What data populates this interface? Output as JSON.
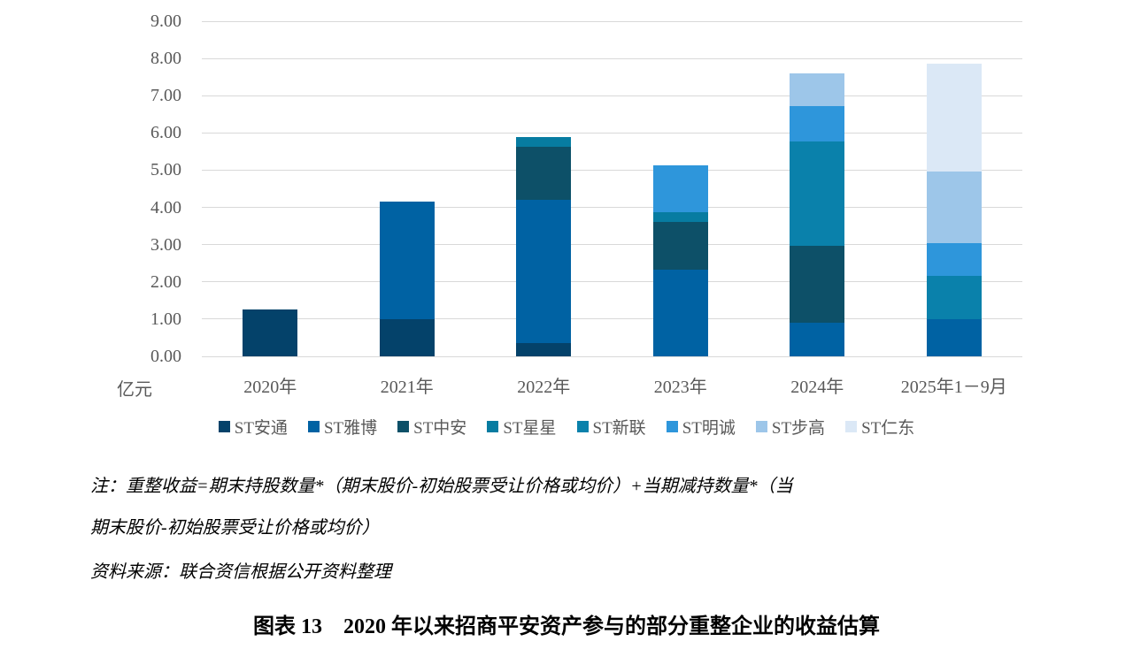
{
  "chart_data": {
    "type": "bar",
    "stacked": true,
    "title": "",
    "xlabel": "",
    "ylabel": "亿元",
    "ylim": [
      0,
      9
    ],
    "ytick_labels": [
      "0.00",
      "1.00",
      "2.00",
      "3.00",
      "4.00",
      "5.00",
      "6.00",
      "7.00",
      "8.00",
      "9.00"
    ],
    "grid": true,
    "legend_position": "bottom",
    "categories": [
      "2020年",
      "2021年",
      "2022年",
      "2023年",
      "2024年",
      "2025年1－9月"
    ],
    "series": [
      {
        "name": "ST安通",
        "color": "#04426a",
        "values": [
          1.25,
          1.0,
          0.35,
          0,
          0,
          0
        ]
      },
      {
        "name": "ST雅博",
        "color": "#0062a3",
        "values": [
          0,
          3.15,
          3.85,
          2.32,
          0.9,
          1.0
        ]
      },
      {
        "name": "ST中安",
        "color": "#0d5068",
        "values": [
          0,
          0,
          1.42,
          1.28,
          2.06,
          0
        ]
      },
      {
        "name": "ST星星",
        "color": "#077ca1",
        "values": [
          0,
          0,
          0.28,
          0.28,
          0,
          0
        ]
      },
      {
        "name": "ST新联",
        "color": "#0a81ab",
        "values": [
          0,
          0,
          0,
          0,
          2.8,
          1.15
        ]
      },
      {
        "name": "ST明诚",
        "color": "#2e96db",
        "values": [
          0,
          0,
          0,
          1.26,
          0.97,
          0.88
        ]
      },
      {
        "name": "ST步高",
        "color": "#9dc6e9",
        "values": [
          0,
          0,
          0,
          0,
          0.88,
          1.94
        ]
      },
      {
        "name": "ST仁东",
        "color": "#dbe8f6",
        "values": [
          0,
          0,
          0,
          0,
          0,
          2.88
        ]
      }
    ],
    "totals": [
      1.25,
      4.15,
      5.9,
      5.14,
      7.61,
      7.85
    ]
  },
  "unit_label": "亿元",
  "notes": {
    "line1": "注：重整收益=期末持股数量*（期末股价-初始股票受让价格或均价）+当期减持数量*（当",
    "line2": "期末股价-初始股票受让价格或均价）",
    "source": "资料来源：联合资信根据公开资料整理"
  },
  "caption": "图表 13　2020 年以来招商平安资产参与的部分重整企业的收益估算",
  "colors": {
    "gridline": "#d9d9d9",
    "axis_text": "#595959",
    "legend_text": "#595959"
  }
}
